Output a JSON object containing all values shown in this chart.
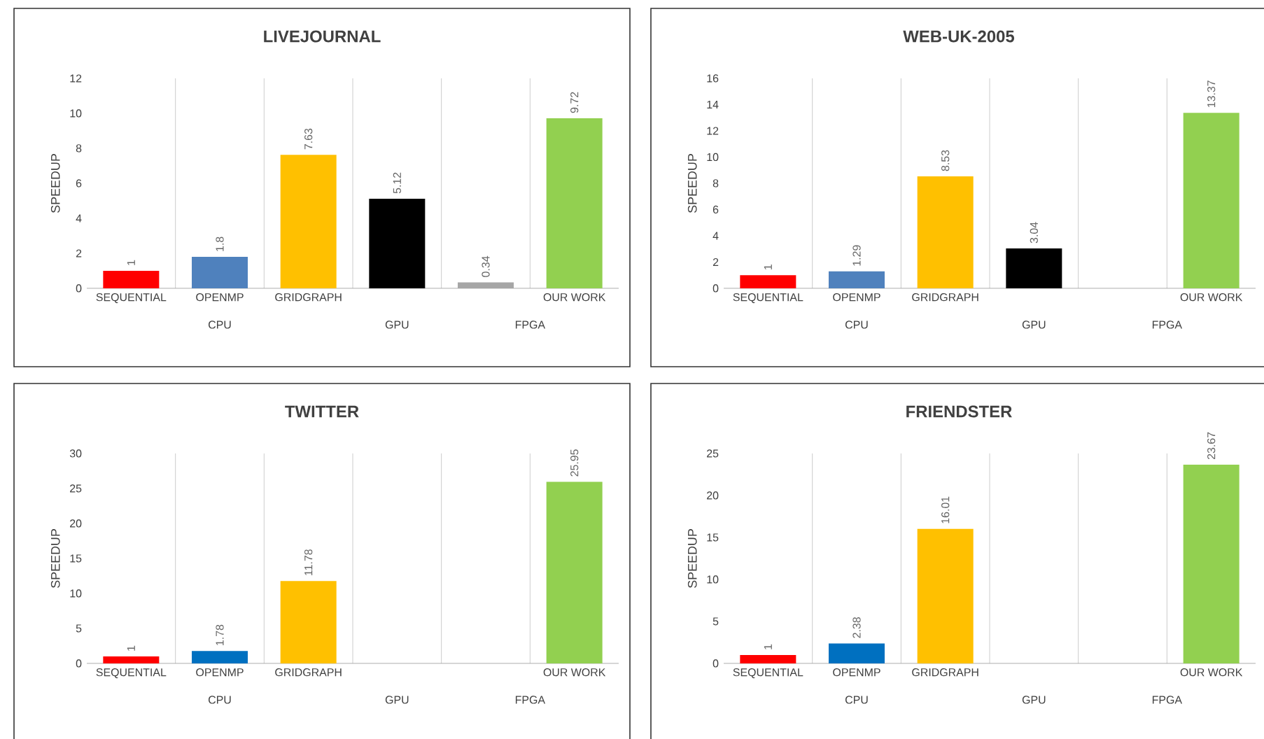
{
  "chart_data": [
    {
      "type": "bar",
      "title": "LIVEJOURNAL",
      "ylabel": "SPEEDUP",
      "categories": [
        "SEQUENTIAL",
        "OPENMP",
        "GRIDGRAPH",
        null,
        null,
        "OUR WORK"
      ],
      "values": [
        1,
        1.8,
        7.63,
        5.12,
        0.34,
        9.72
      ],
      "colors": [
        "#ff0000",
        "#4f81bd",
        "#ffc000",
        "#000000",
        "#a6a6a6",
        "#92d050"
      ],
      "ylim": [
        0,
        12
      ],
      "yticks": [
        0,
        2,
        4,
        6,
        8,
        10,
        12
      ],
      "data_labels": true,
      "grid": "x",
      "annotations": [
        "CPU",
        "GPU",
        "FPGA"
      ]
    },
    {
      "type": "bar",
      "title": "WEB-UK-2005",
      "ylabel": "SPEEDUP",
      "categories": [
        "SEQUENTIAL",
        "OPENMP",
        "GRIDGRAPH",
        null,
        null,
        "OUR WORK"
      ],
      "values": [
        1,
        1.29,
        8.53,
        3.04,
        null,
        13.37
      ],
      "colors": [
        "#ff0000",
        "#4f81bd",
        "#ffc000",
        "#000000",
        "#a6a6a6",
        "#92d050"
      ],
      "ylim": [
        0,
        16
      ],
      "yticks": [
        0,
        2,
        4,
        6,
        8,
        10,
        12,
        14,
        16
      ],
      "data_labels": true,
      "grid": "x",
      "annotations": [
        "CPU",
        "GPU",
        "FPGA"
      ]
    },
    {
      "type": "bar",
      "title": "TWITTER",
      "ylabel": "SPEEDUP",
      "categories": [
        "SEQUENTIAL",
        "OPENMP",
        "GRIDGRAPH",
        null,
        null,
        "OUR WORK"
      ],
      "values": [
        1,
        1.78,
        11.78,
        null,
        null,
        25.95
      ],
      "colors": [
        "#ff0000",
        "#0070c0",
        "#ffc000",
        "#000000",
        "#a6a6a6",
        "#92d050"
      ],
      "ylim": [
        0,
        30
      ],
      "yticks": [
        0,
        5,
        10,
        15,
        20,
        25,
        30
      ],
      "data_labels": true,
      "grid": "x",
      "annotations": [
        "CPU",
        "GPU",
        "FPGA"
      ]
    },
    {
      "type": "bar",
      "title": "FRIENDSTER",
      "ylabel": "SPEEDUP",
      "categories": [
        "SEQUENTIAL",
        "OPENMP",
        "GRIDGRAPH",
        null,
        null,
        "OUR WORK"
      ],
      "values": [
        1,
        2.38,
        16.01,
        null,
        null,
        23.67
      ],
      "colors": [
        "#ff0000",
        "#0070c0",
        "#ffc000",
        "#000000",
        "#a6a6a6",
        "#92d050"
      ],
      "ylim": [
        0,
        25
      ],
      "yticks": [
        0,
        5,
        10,
        15,
        20,
        25
      ],
      "data_labels": true,
      "grid": "x",
      "annotations": [
        "CPU",
        "GPU",
        "FPGA"
      ]
    }
  ]
}
